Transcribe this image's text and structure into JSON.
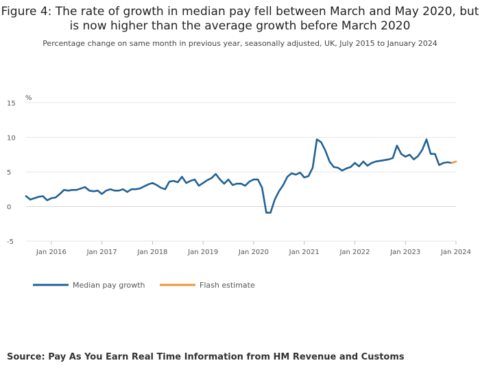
{
  "title": "Figure 4: The rate of growth in median pay fell between March and May 2020, but is now higher than the average growth before March 2020",
  "subtitle": "Percentage change on same month in previous year, seasonally adjusted, UK, July 2015 to January 2024",
  "source": "Source: Pay As You Earn Real Time Information from HM Revenue and Customs",
  "chart_data": {
    "type": "line",
    "ylabel": "%",
    "ylim": [
      -5,
      15
    ],
    "yticks": [
      "15",
      "10",
      "5",
      "0",
      "-5"
    ],
    "xlim": [
      "2015-07",
      "2024-01"
    ],
    "xticks": [
      "Jan 2016",
      "Jan 2017",
      "Jan 2018",
      "Jan 2019",
      "Jan 2020",
      "Jan 2021",
      "Jan 2022",
      "Jan 2023",
      "Jan 2024"
    ],
    "grid": true,
    "legend_position": "bottom-left",
    "series": [
      {
        "name": "Median pay growth",
        "color": "#206095",
        "x": [
          "2015-07",
          "2015-08",
          "2015-09",
          "2015-10",
          "2015-11",
          "2015-12",
          "2016-01",
          "2016-02",
          "2016-03",
          "2016-04",
          "2016-05",
          "2016-06",
          "2016-07",
          "2016-08",
          "2016-09",
          "2016-10",
          "2016-11",
          "2016-12",
          "2017-01",
          "2017-02",
          "2017-03",
          "2017-04",
          "2017-05",
          "2017-06",
          "2017-07",
          "2017-08",
          "2017-09",
          "2017-10",
          "2017-11",
          "2017-12",
          "2018-01",
          "2018-02",
          "2018-03",
          "2018-04",
          "2018-05",
          "2018-06",
          "2018-07",
          "2018-08",
          "2018-09",
          "2018-10",
          "2018-11",
          "2018-12",
          "2019-01",
          "2019-02",
          "2019-03",
          "2019-04",
          "2019-05",
          "2019-06",
          "2019-07",
          "2019-08",
          "2019-09",
          "2019-10",
          "2019-11",
          "2019-12",
          "2020-01",
          "2020-02",
          "2020-03",
          "2020-04",
          "2020-05",
          "2020-06",
          "2020-07",
          "2020-08",
          "2020-09",
          "2020-10",
          "2020-11",
          "2020-12",
          "2021-01",
          "2021-02",
          "2021-03",
          "2021-04",
          "2021-05",
          "2021-06",
          "2021-07",
          "2021-08",
          "2021-09",
          "2021-10",
          "2021-11",
          "2021-12",
          "2022-01",
          "2022-02",
          "2022-03",
          "2022-04",
          "2022-05",
          "2022-06",
          "2022-07",
          "2022-08",
          "2022-09",
          "2022-10",
          "2022-11",
          "2022-12",
          "2023-01",
          "2023-02",
          "2023-03",
          "2023-04",
          "2023-05",
          "2023-06",
          "2023-07",
          "2023-08",
          "2023-09",
          "2023-10",
          "2023-11",
          "2023-12"
        ],
        "values": [
          1.5,
          1.0,
          1.2,
          1.4,
          1.5,
          0.9,
          1.2,
          1.3,
          1.8,
          2.4,
          2.3,
          2.4,
          2.4,
          2.6,
          2.8,
          2.3,
          2.2,
          2.3,
          1.8,
          2.3,
          2.5,
          2.3,
          2.3,
          2.5,
          2.1,
          2.5,
          2.5,
          2.6,
          2.9,
          3.2,
          3.4,
          3.1,
          2.7,
          2.5,
          3.6,
          3.7,
          3.5,
          4.3,
          3.4,
          3.7,
          3.9,
          3.0,
          3.4,
          3.8,
          4.1,
          4.7,
          3.9,
          3.3,
          3.9,
          3.1,
          3.3,
          3.3,
          3.0,
          3.6,
          3.9,
          3.9,
          2.7,
          -0.9,
          -0.9,
          1.0,
          2.2,
          3.1,
          4.3,
          4.8,
          4.6,
          4.9,
          4.2,
          4.4,
          5.6,
          9.7,
          9.3,
          8.1,
          6.5,
          5.7,
          5.6,
          5.2,
          5.5,
          5.7,
          6.3,
          5.8,
          6.5,
          5.9,
          6.3,
          6.5,
          6.6,
          6.7,
          6.8,
          7.0,
          8.8,
          7.6,
          7.2,
          7.5,
          6.8,
          7.3,
          8.2,
          9.7,
          7.6,
          7.6,
          6.0,
          6.3,
          6.4,
          6.3
        ]
      },
      {
        "name": "Flash estimate",
        "color": "#f39431",
        "x": [
          "2023-12",
          "2024-01"
        ],
        "values": [
          6.3,
          6.5
        ]
      }
    ]
  }
}
